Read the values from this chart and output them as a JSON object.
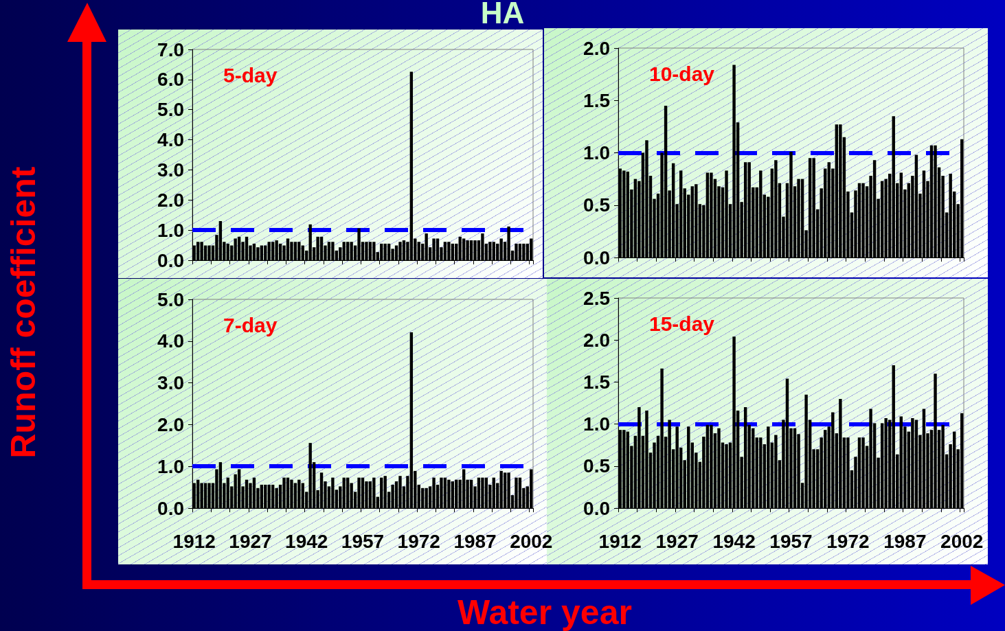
{
  "chart_data": [
    {
      "type": "bar",
      "title": "HA",
      "ylabel": "Runoff coefficient",
      "annotations": [
        "5-day"
      ],
      "tick_labels": "y",
      "categories": [
        "1912",
        null,
        null,
        null,
        null,
        null,
        null,
        null,
        null,
        null,
        null,
        null,
        null,
        null,
        null,
        "1927",
        null,
        null,
        null,
        null,
        null,
        null,
        null,
        null,
        null,
        null,
        null,
        null,
        null,
        null,
        "1942",
        null,
        null,
        null,
        null,
        null,
        null,
        null,
        null,
        null,
        null,
        null,
        null,
        null,
        null,
        "1957",
        null,
        null,
        null,
        null,
        null,
        null,
        null,
        null,
        null,
        null,
        null,
        null,
        null,
        null,
        "1972",
        null,
        null,
        null,
        null,
        null,
        null,
        null,
        null,
        null,
        null,
        null,
        null,
        null,
        null,
        "1987",
        null,
        null,
        null,
        null,
        null,
        null,
        null,
        null,
        null,
        null,
        null,
        null,
        null,
        null,
        "2002"
      ],
      "values": [
        0.49,
        0.61,
        0.61,
        0.49,
        0.49,
        0.49,
        0.84,
        1.3,
        0.61,
        0.55,
        0.49,
        0.72,
        0.78,
        0.61,
        0.78,
        0.49,
        0.55,
        0.43,
        0.49,
        0.49,
        0.61,
        0.61,
        0.66,
        0.55,
        0.49,
        0.72,
        0.61,
        0.61,
        0.61,
        0.49,
        0.32,
        1.19,
        0.43,
        0.78,
        0.78,
        0.49,
        0.61,
        0.61,
        0.32,
        0.43,
        0.61,
        0.61,
        0.61,
        0.49,
        1.06,
        0.61,
        0.61,
        0.61,
        0.61,
        0.27,
        0.55,
        0.55,
        0.55,
        0.38,
        0.49,
        0.61,
        0.66,
        0.61,
        6.26,
        0.72,
        0.61,
        0.55,
        0.89,
        0.43,
        0.72,
        0.72,
        0.43,
        0.61,
        0.61,
        0.55,
        0.55,
        0.78,
        0.72,
        0.66,
        0.66,
        0.66,
        0.66,
        0.89,
        0.55,
        0.61,
        0.61,
        0.55,
        0.72,
        0.61,
        1.12,
        0.32,
        0.55,
        0.55,
        0.55,
        0.55,
        0.72
      ],
      "color": "#000000",
      "ylim": [
        0,
        7
      ],
      "yticks": [
        {
          "value": 0,
          "label": "0.0"
        },
        {
          "value": 1,
          "label": "1.0"
        },
        {
          "value": 2,
          "label": "2.0"
        },
        {
          "value": 3,
          "label": "3.0"
        },
        {
          "value": 4,
          "label": "4.0"
        },
        {
          "value": 5,
          "label": "5.0"
        },
        {
          "value": 6,
          "label": "6.0"
        },
        {
          "value": 7,
          "label": "7.0"
        }
      ],
      "ref_lines": [
        {
          "axis": "y",
          "value": 1,
          "color": "#0000ff",
          "line_style": "dashed"
        }
      ]
    },
    {
      "type": "bar",
      "annotations": [
        "10-day"
      ],
      "tick_labels": "y",
      "categories": [
        "1912",
        null,
        null,
        null,
        null,
        null,
        null,
        null,
        null,
        null,
        null,
        null,
        null,
        null,
        null,
        "1927",
        null,
        null,
        null,
        null,
        null,
        null,
        null,
        null,
        null,
        null,
        null,
        null,
        null,
        null,
        "1942",
        null,
        null,
        null,
        null,
        null,
        null,
        null,
        null,
        null,
        null,
        null,
        null,
        null,
        null,
        "1957",
        null,
        null,
        null,
        null,
        null,
        null,
        null,
        null,
        null,
        null,
        null,
        null,
        null,
        null,
        "1972",
        null,
        null,
        null,
        null,
        null,
        null,
        null,
        null,
        null,
        null,
        null,
        null,
        null,
        null,
        "1987",
        null,
        null,
        null,
        null,
        null,
        null,
        null,
        null,
        null,
        null,
        null,
        null,
        null,
        null,
        "2002"
      ],
      "values": [
        0.85,
        0.83,
        0.82,
        0.65,
        0.75,
        0.73,
        1.0,
        1.12,
        0.78,
        0.56,
        0.61,
        1.0,
        1.45,
        0.64,
        0.9,
        0.51,
        0.83,
        0.66,
        0.6,
        0.68,
        0.7,
        0.51,
        0.5,
        0.81,
        0.81,
        0.75,
        0.68,
        0.67,
        0.83,
        0.51,
        1.84,
        1.29,
        0.53,
        0.91,
        0.91,
        0.67,
        0.67,
        0.83,
        0.6,
        0.58,
        0.85,
        0.93,
        0.71,
        0.39,
        0.71,
        1.01,
        0.68,
        0.75,
        0.75,
        0.26,
        0.95,
        0.95,
        0.46,
        0.66,
        0.85,
        0.91,
        0.85,
        1.27,
        1.27,
        1.15,
        0.63,
        0.43,
        0.64,
        0.71,
        0.71,
        0.68,
        0.78,
        0.93,
        0.56,
        0.73,
        0.75,
        0.8,
        1.35,
        0.71,
        0.81,
        0.65,
        0.71,
        0.78,
        0.98,
        0.61,
        0.83,
        0.73,
        1.07,
        1.07,
        0.86,
        0.78,
        0.43,
        0.8,
        0.63,
        0.51,
        1.13
      ],
      "color": "#000000",
      "ylim": [
        0,
        2
      ],
      "yticks": [
        {
          "value": 0,
          "label": "0.0"
        },
        {
          "value": 0.5,
          "label": "0.5"
        },
        {
          "value": 1,
          "label": "1.0"
        },
        {
          "value": 1.5,
          "label": "1.5"
        },
        {
          "value": 2,
          "label": "2.0"
        }
      ],
      "ref_lines": [
        {
          "axis": "y",
          "value": 1,
          "color": "#0000ff",
          "line_style": "dashed"
        }
      ]
    },
    {
      "type": "bar",
      "xlabel": "Water year",
      "annotations": [
        "7-day"
      ],
      "categories": [
        "1912",
        null,
        null,
        null,
        null,
        null,
        null,
        null,
        null,
        null,
        null,
        null,
        null,
        null,
        null,
        "1927",
        null,
        null,
        null,
        null,
        null,
        null,
        null,
        null,
        null,
        null,
        null,
        null,
        null,
        null,
        "1942",
        null,
        null,
        null,
        null,
        null,
        null,
        null,
        null,
        null,
        null,
        null,
        null,
        null,
        null,
        "1957",
        null,
        null,
        null,
        null,
        null,
        null,
        null,
        null,
        null,
        null,
        null,
        null,
        null,
        null,
        "1972",
        null,
        null,
        null,
        null,
        null,
        null,
        null,
        null,
        null,
        null,
        null,
        null,
        null,
        null,
        "1987",
        null,
        null,
        null,
        null,
        null,
        null,
        null,
        null,
        null,
        null,
        null,
        null,
        null,
        null,
        "2002"
      ],
      "values": [
        0.6,
        0.68,
        0.6,
        0.6,
        0.6,
        0.6,
        0.93,
        1.1,
        0.6,
        0.73,
        0.52,
        0.81,
        0.93,
        0.52,
        0.68,
        0.6,
        0.73,
        0.48,
        0.56,
        0.56,
        0.56,
        0.56,
        0.48,
        0.56,
        0.73,
        0.73,
        0.68,
        0.6,
        0.68,
        0.6,
        0.39,
        1.56,
        1.1,
        0.43,
        0.85,
        0.64,
        0.52,
        0.73,
        0.44,
        0.52,
        0.73,
        0.73,
        0.6,
        0.39,
        0.73,
        0.73,
        0.64,
        0.64,
        0.73,
        0.27,
        0.73,
        0.77,
        0.39,
        0.56,
        0.64,
        0.77,
        0.52,
        0.77,
        4.21,
        0.89,
        0.56,
        0.48,
        0.48,
        0.52,
        0.73,
        0.56,
        0.73,
        0.73,
        0.68,
        0.64,
        0.68,
        0.68,
        0.93,
        0.68,
        0.68,
        0.52,
        0.73,
        0.73,
        0.73,
        0.56,
        0.73,
        0.6,
        0.89,
        0.85,
        0.85,
        0.31,
        0.73,
        0.73,
        0.48,
        0.52,
        0.93
      ],
      "color": "#000000",
      "ylim": [
        0,
        5
      ],
      "yticks": [
        {
          "value": 0,
          "label": "0.0"
        },
        {
          "value": 1,
          "label": "1.0"
        },
        {
          "value": 2,
          "label": "2.0"
        },
        {
          "value": 3,
          "label": "3.0"
        },
        {
          "value": 4,
          "label": "4.0"
        },
        {
          "value": 5,
          "label": "5.0"
        }
      ],
      "ref_lines": [
        {
          "axis": "y",
          "value": 1,
          "color": "#0000ff",
          "line_style": "dashed"
        }
      ]
    },
    {
      "type": "bar",
      "annotations": [
        "15-day"
      ],
      "categories": [
        "1912",
        null,
        null,
        null,
        null,
        null,
        null,
        null,
        null,
        null,
        null,
        null,
        null,
        null,
        null,
        "1927",
        null,
        null,
        null,
        null,
        null,
        null,
        null,
        null,
        null,
        null,
        null,
        null,
        null,
        null,
        "1942",
        null,
        null,
        null,
        null,
        null,
        null,
        null,
        null,
        null,
        null,
        null,
        null,
        null,
        null,
        "1957",
        null,
        null,
        null,
        null,
        null,
        null,
        null,
        null,
        null,
        null,
        null,
        null,
        null,
        null,
        "1972",
        null,
        null,
        null,
        null,
        null,
        null,
        null,
        null,
        null,
        null,
        null,
        null,
        null,
        null,
        "1987",
        null,
        null,
        null,
        null,
        null,
        null,
        null,
        null,
        null,
        null,
        null,
        null,
        null,
        null,
        "2002"
      ],
      "values": [
        0.93,
        0.93,
        0.91,
        0.74,
        0.86,
        1.2,
        0.86,
        1.16,
        0.66,
        0.78,
        0.86,
        1.66,
        0.85,
        1.05,
        0.7,
        0.97,
        0.72,
        0.57,
        0.97,
        0.78,
        0.66,
        0.55,
        0.85,
        0.99,
        0.99,
        0.89,
        0.95,
        0.78,
        0.76,
        0.78,
        2.04,
        1.16,
        0.61,
        1.2,
        0.99,
        0.95,
        0.84,
        0.84,
        0.76,
        0.97,
        0.78,
        0.87,
        0.57,
        1.05,
        1.54,
        0.95,
        0.95,
        0.88,
        0.3,
        1.35,
        1.05,
        0.7,
        0.7,
        0.84,
        0.93,
        0.97,
        1.14,
        0.89,
        1.3,
        0.84,
        0.84,
        0.45,
        0.61,
        0.84,
        0.84,
        0.74,
        1.18,
        1.01,
        0.6,
        1.01,
        1.07,
        1.05,
        1.7,
        0.64,
        1.09,
        0.97,
        0.91,
        1.07,
        1.05,
        0.87,
        1.18,
        0.89,
        0.93,
        1.6,
        0.93,
        0.99,
        0.64,
        0.76,
        0.91,
        0.7,
        1.13
      ],
      "color": "#000000",
      "ylim": [
        0,
        2.5
      ],
      "yticks": [
        {
          "value": 0,
          "label": "0.0"
        },
        {
          "value": 0.5,
          "label": "0.5"
        },
        {
          "value": 1,
          "label": "1.0"
        },
        {
          "value": 1.5,
          "label": "1.5"
        },
        {
          "value": 2,
          "label": "2.0"
        },
        {
          "value": 2.5,
          "label": "2.5"
        }
      ],
      "ref_lines": [
        {
          "axis": "y",
          "value": 1,
          "color": "#0000ff",
          "line_style": "dashed"
        }
      ]
    }
  ]
}
